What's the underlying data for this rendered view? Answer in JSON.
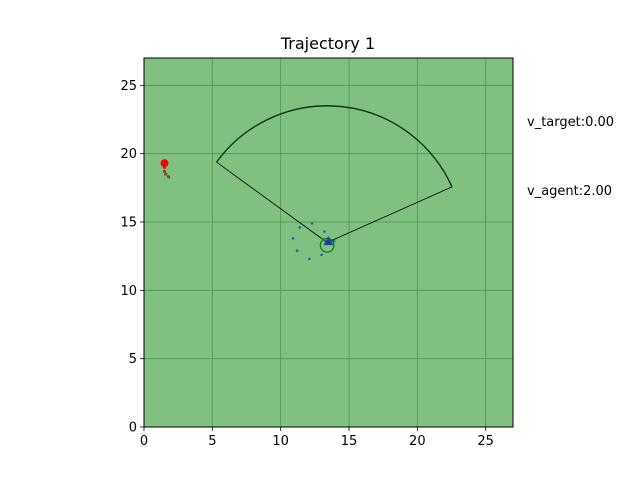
{
  "chart_data": {
    "type": "scatter",
    "title": "Trajectory 1",
    "xlabel": "",
    "ylabel": "",
    "xlim": [
      0,
      27
    ],
    "ylim": [
      0,
      27
    ],
    "xticks": [
      0,
      5,
      10,
      15,
      20,
      25
    ],
    "yticks": [
      0,
      5,
      10,
      15,
      20,
      25
    ],
    "grid": true,
    "colors": {
      "background": "#80c080",
      "grid": "#4e944e",
      "target": "#ff0000",
      "target_trail": "#8b4513",
      "agent": "#1f3f9f",
      "agent_circle": "#008000",
      "fov": "#003000",
      "scan_points": "#1f5fbf"
    },
    "target": {
      "x": 1.5,
      "y": 19.3,
      "trail": [
        [
          1.5,
          19.0
        ],
        [
          1.5,
          18.7
        ],
        [
          1.6,
          18.5
        ],
        [
          1.8,
          18.3
        ]
      ]
    },
    "agent": {
      "x": 13.4,
      "y": 13.3,
      "heading_deg": 90,
      "marker": "triangle",
      "circle_radius": 0.5
    },
    "fov": {
      "apex": [
        13.4,
        13.5
      ],
      "radius": 10.0,
      "start_deg": 24,
      "end_deg": 144
    },
    "scan_points": [
      [
        12.3,
        14.9
      ],
      [
        11.4,
        14.6
      ],
      [
        13.2,
        14.3
      ],
      [
        10.9,
        13.8
      ],
      [
        11.2,
        12.9
      ],
      [
        12.1,
        12.3
      ],
      [
        13.0,
        12.6
      ],
      [
        13.9,
        13.6
      ]
    ],
    "annotations": [
      "v_target:0.00",
      "v_agent:2.00"
    ]
  }
}
